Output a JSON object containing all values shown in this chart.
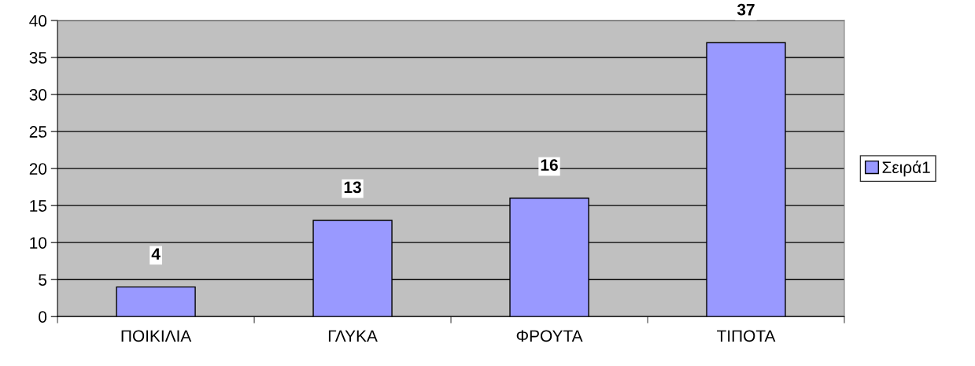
{
  "chart_data": {
    "type": "bar",
    "categories": [
      "ΠΟΙΚΙΛΙΑ",
      "ΓΛΥΚΑ",
      "ΦΡΟΥΤΑ",
      "ΤΙΠΟΤΑ"
    ],
    "series": [
      {
        "name": "Σειρά1",
        "color": "#9999ff",
        "values": [
          4,
          13,
          16,
          37
        ]
      }
    ],
    "ylim": [
      0,
      40
    ],
    "yticks": [
      0,
      5,
      10,
      15,
      20,
      25,
      30,
      35,
      40
    ],
    "grid": "y",
    "legend": "right",
    "data_labels": true
  }
}
